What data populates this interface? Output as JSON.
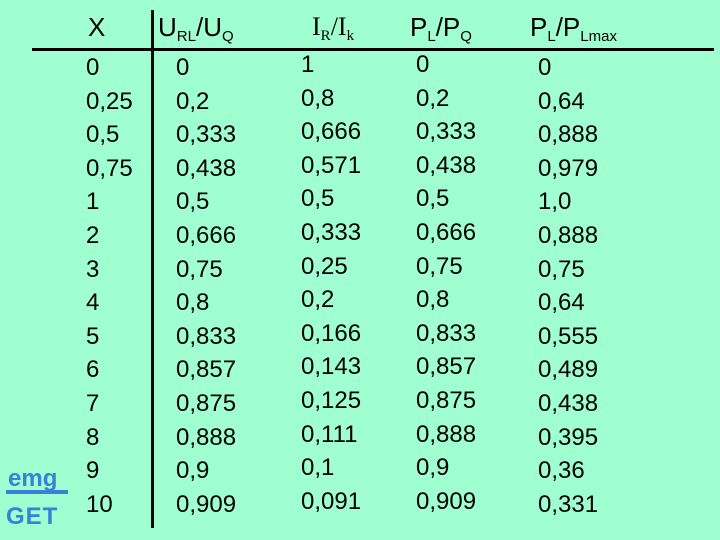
{
  "headers": {
    "x": "X",
    "url_uq_main": "U",
    "url_sub": "RL",
    "url_slash": "/U",
    "uq_sub": "Q",
    "ir_main": "I",
    "ir_sub": "R",
    "ir_slash": "/I",
    "ik_sub": "k",
    "pl_main": "P",
    "pl_sub": "L",
    "pl_slash": "/P",
    "pq_sub": "Q",
    "plmax_main": "P",
    "plmax_sub": "L",
    "plmax_slash": "/P",
    "plmax_sub2": "Lmax"
  },
  "columns": {
    "x": [
      "0",
      "0,25",
      "0,5",
      "0,75",
      "1",
      "2",
      "3",
      "4",
      "5",
      "6",
      "7",
      "8",
      "9",
      "10"
    ],
    "url_uq": [
      "0",
      "0,2",
      "0,333",
      "0,438",
      "0,5",
      "0,666",
      "0,75",
      "0,8",
      "0,833",
      "0,857",
      "0,875",
      "0,888",
      "0,9",
      "0,909"
    ],
    "ir_ik": [
      "1",
      "0,8",
      "0,666",
      "0,571",
      "0,5",
      "0,333",
      "0,25",
      "0,2",
      "0,166",
      "0,143",
      "0,125",
      "0,111",
      "0,1",
      "0,091"
    ],
    "pl_pq": [
      "0",
      "0,2",
      "0,333",
      "0,438",
      "0,5",
      "0,666",
      "0,75",
      "0,8",
      "0,833",
      "0,857",
      "0,875",
      "0,888",
      "0,9",
      "0,909"
    ],
    "pl_plmax": [
      "0",
      "0,64",
      "0,888",
      "0,979",
      "1,0",
      "0,888",
      "0,75",
      "0,64",
      "0,555",
      "0,489",
      "0,438",
      "0,395",
      "0,36",
      "0,331"
    ]
  },
  "logo": {
    "line1": "emg",
    "line2": "GET"
  },
  "colors": {
    "background": "#9fffd0",
    "logo": "#3a7fd8"
  }
}
